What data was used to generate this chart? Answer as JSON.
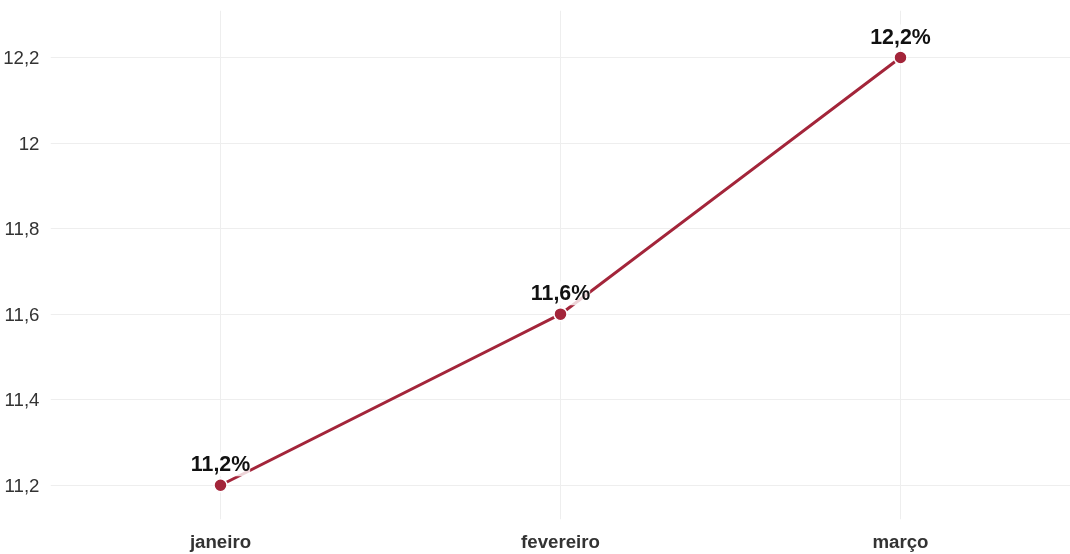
{
  "chart_data": {
    "type": "line",
    "categories": [
      "janeiro",
      "fevereiro",
      "março"
    ],
    "series": [
      {
        "color": "#a3253a",
        "values": [
          11.2,
          11.6,
          12.2
        ],
        "value_labels": [
          "11,2%",
          "11,6%",
          "12,2%"
        ]
      }
    ],
    "ylim": [
      11.12,
      12.31
    ],
    "yticks": [
      {
        "value": 11.2,
        "label": "11,2"
      },
      {
        "value": 11.4,
        "label": "11,4"
      },
      {
        "value": 11.6,
        "label": "11,6"
      },
      {
        "value": 11.8,
        "label": "11,8"
      },
      {
        "value": 12,
        "label": "12"
      },
      {
        "value": 12.2,
        "label": "12,2"
      }
    ],
    "grid": true,
    "marker": "circle",
    "line_style": "solid"
  }
}
